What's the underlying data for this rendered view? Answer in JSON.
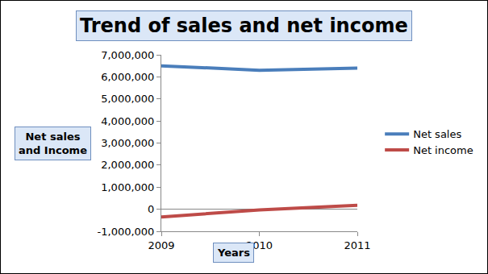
{
  "chart_data": {
    "type": "line",
    "title": "Trend of sales and net income",
    "x_label": "Years",
    "y_label": "Net sales and Income",
    "x": [
      2009,
      2010,
      2011
    ],
    "series": [
      {
        "name": "Net sales",
        "color": "#4a7ebb",
        "values": [
          6500000,
          6300000,
          6400000
        ],
        "line_style": "solid"
      },
      {
        "name": "Net income",
        "color": "#be4b48",
        "values": [
          -350000,
          -30000,
          180000
        ],
        "line_style": "solid"
      }
    ],
    "xlim": [
      2009,
      2011
    ],
    "xticks": [
      2009,
      2010,
      2011
    ],
    "ylim": [
      -1000000,
      7000000
    ],
    "yticks": [
      {
        "value": -1000000,
        "label": "-1,000,000"
      },
      0,
      {
        "value": 1000000,
        "label": "1,000,000"
      },
      {
        "value": 2000000,
        "label": "2,000,000"
      },
      {
        "value": 3000000,
        "label": "3,000,000"
      },
      {
        "value": 4000000,
        "label": "4,000,000"
      },
      {
        "value": 5000000,
        "label": "5,000,000"
      },
      {
        "value": 6000000,
        "label": "6,000,000"
      },
      {
        "value": 7000000,
        "label": "7,000,000"
      }
    ],
    "grid": false,
    "legend": "right"
  }
}
